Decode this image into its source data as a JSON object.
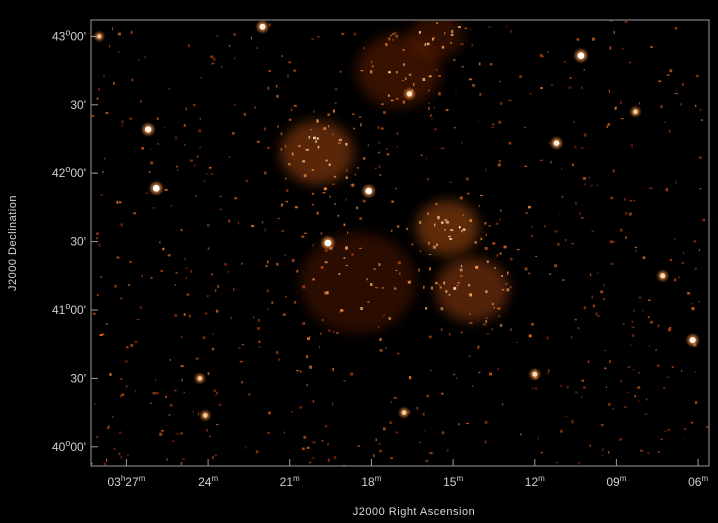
{
  "chart_data": {
    "type": "heatmap",
    "title": "",
    "xlabel": "J2000 Right Ascension",
    "ylabel": "J2000 Declination",
    "colormap": [
      "#000000",
      "#3a0f00",
      "#8a2a05",
      "#d4621a",
      "#f7a45a",
      "#ffe3bf",
      "#ffffff"
    ],
    "x_ticks": [
      {
        "value_min": 27,
        "label_h": "03",
        "label_m": "27"
      },
      {
        "value_min": 24,
        "label_h": "",
        "label_m": "24"
      },
      {
        "value_min": 21,
        "label_h": "",
        "label_m": "21"
      },
      {
        "value_min": 18,
        "label_h": "",
        "label_m": "18"
      },
      {
        "value_min": 15,
        "label_h": "",
        "label_m": "15"
      },
      {
        "value_min": 12,
        "label_h": "",
        "label_m": "12"
      },
      {
        "value_min": 9,
        "label_h": "",
        "label_m": "09"
      },
      {
        "value_min": 6,
        "label_h": "",
        "label_m": "06"
      }
    ],
    "y_ticks": [
      {
        "value_deg": 43.0,
        "label_d": "43",
        "label_m": "00",
        "suffix": "'"
      },
      {
        "value_deg": 42.5,
        "label_d": "",
        "label_m": "30",
        "suffix": "'"
      },
      {
        "value_deg": 42.0,
        "label_d": "42",
        "label_m": "00",
        "suffix": "'"
      },
      {
        "value_deg": 41.5,
        "label_d": "",
        "label_m": "30",
        "suffix": "'"
      },
      {
        "value_deg": 41.0,
        "label_d": "41",
        "label_m": "00",
        "suffix": "'"
      },
      {
        "value_deg": 40.5,
        "label_d": "",
        "label_m": "30",
        "suffix": "'"
      },
      {
        "value_deg": 40.0,
        "label_d": "40",
        "label_m": "00",
        "suffix": "'"
      }
    ],
    "ra_range_min": [
      28.3,
      5.6
    ],
    "dec_range_deg": [
      39.86,
      43.12
    ],
    "emission_regions": [
      {
        "ra_min": 20.0,
        "dec_deg": 42.15,
        "radius_arcmin": 14,
        "intensity": 0.85
      },
      {
        "ra_min": 15.2,
        "dec_deg": 41.6,
        "radius_arcmin": 12,
        "intensity": 0.9
      },
      {
        "ra_min": 14.3,
        "dec_deg": 41.15,
        "radius_arcmin": 14,
        "intensity": 0.8
      },
      {
        "ra_min": 17.0,
        "dec_deg": 42.75,
        "radius_arcmin": 16,
        "intensity": 0.55
      },
      {
        "ra_min": 15.6,
        "dec_deg": 43.0,
        "radius_arcmin": 10,
        "intensity": 0.5
      },
      {
        "ra_min": 18.5,
        "dec_deg": 41.2,
        "radius_arcmin": 22,
        "intensity": 0.45
      }
    ],
    "point_sources": [
      {
        "ra_min": 10.3,
        "dec_deg": 42.86,
        "brightness": 1.0
      },
      {
        "ra_min": 25.9,
        "dec_deg": 41.89,
        "brightness": 1.0
      },
      {
        "ra_min": 19.6,
        "dec_deg": 41.49,
        "brightness": 1.0
      },
      {
        "ra_min": 26.2,
        "dec_deg": 42.32,
        "brightness": 0.9
      },
      {
        "ra_min": 18.1,
        "dec_deg": 41.87,
        "brightness": 0.95
      },
      {
        "ra_min": 22.0,
        "dec_deg": 43.07,
        "brightness": 0.8
      },
      {
        "ra_min": 16.6,
        "dec_deg": 42.58,
        "brightness": 0.7
      },
      {
        "ra_min": 11.2,
        "dec_deg": 42.22,
        "brightness": 0.75
      },
      {
        "ra_min": 6.2,
        "dec_deg": 40.78,
        "brightness": 0.85
      },
      {
        "ra_min": 7.3,
        "dec_deg": 41.25,
        "brightness": 0.6
      },
      {
        "ra_min": 12.0,
        "dec_deg": 40.53,
        "brightness": 0.6
      },
      {
        "ra_min": 24.3,
        "dec_deg": 40.5,
        "brightness": 0.5
      },
      {
        "ra_min": 24.1,
        "dec_deg": 40.23,
        "brightness": 0.5
      },
      {
        "ra_min": 16.8,
        "dec_deg": 40.25,
        "brightness": 0.5
      },
      {
        "ra_min": 8.3,
        "dec_deg": 42.45,
        "brightness": 0.5
      },
      {
        "ra_min": 28.0,
        "dec_deg": 43.0,
        "brightness": 0.45
      }
    ]
  }
}
